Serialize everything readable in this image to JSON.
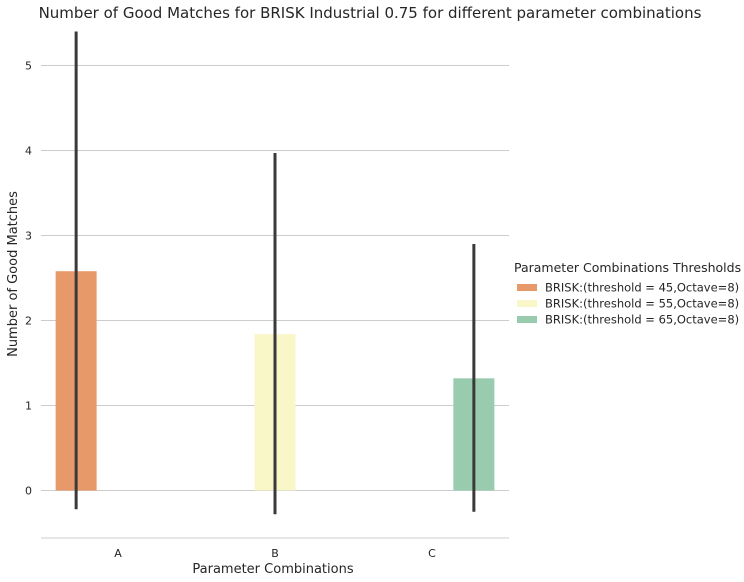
{
  "chart_data": {
    "type": "bar",
    "title": "Number of Good Matches for BRISK Industrial 0.75 for different parameter combinations",
    "xlabel": "Parameter Combinations",
    "ylabel": "Number of Good Matches",
    "categories": [
      "A",
      "B",
      "C"
    ],
    "ylim": [
      -0.55,
      5.45
    ],
    "yticks": [
      0,
      1,
      2,
      3,
      4,
      5
    ],
    "grid": true,
    "legend": {
      "title": "Parameter Combinations Thresholds",
      "placement": "center-right"
    },
    "series": [
      {
        "name": "BRISK:(threshold = 45,Octave=8)",
        "color": "#e8996a",
        "values": [
          2.58,
          null,
          null
        ],
        "error_low": [
          -0.22,
          null,
          null
        ],
        "error_high": [
          5.4,
          null,
          null
        ]
      },
      {
        "name": "BRISK:(threshold = 55,Octave=8)",
        "color": "#f9f6c8",
        "values": [
          null,
          1.84,
          null
        ],
        "error_low": [
          null,
          -0.28,
          null
        ],
        "error_high": [
          null,
          3.97,
          null
        ]
      },
      {
        "name": "BRISK:(threshold = 65,Octave=8)",
        "color": "#99ccaf",
        "values": [
          null,
          null,
          1.32
        ],
        "error_low": [
          null,
          null,
          -0.25
        ],
        "error_high": [
          null,
          null,
          2.9
        ]
      }
    ],
    "error_bar_color": "#3a3a3a"
  }
}
